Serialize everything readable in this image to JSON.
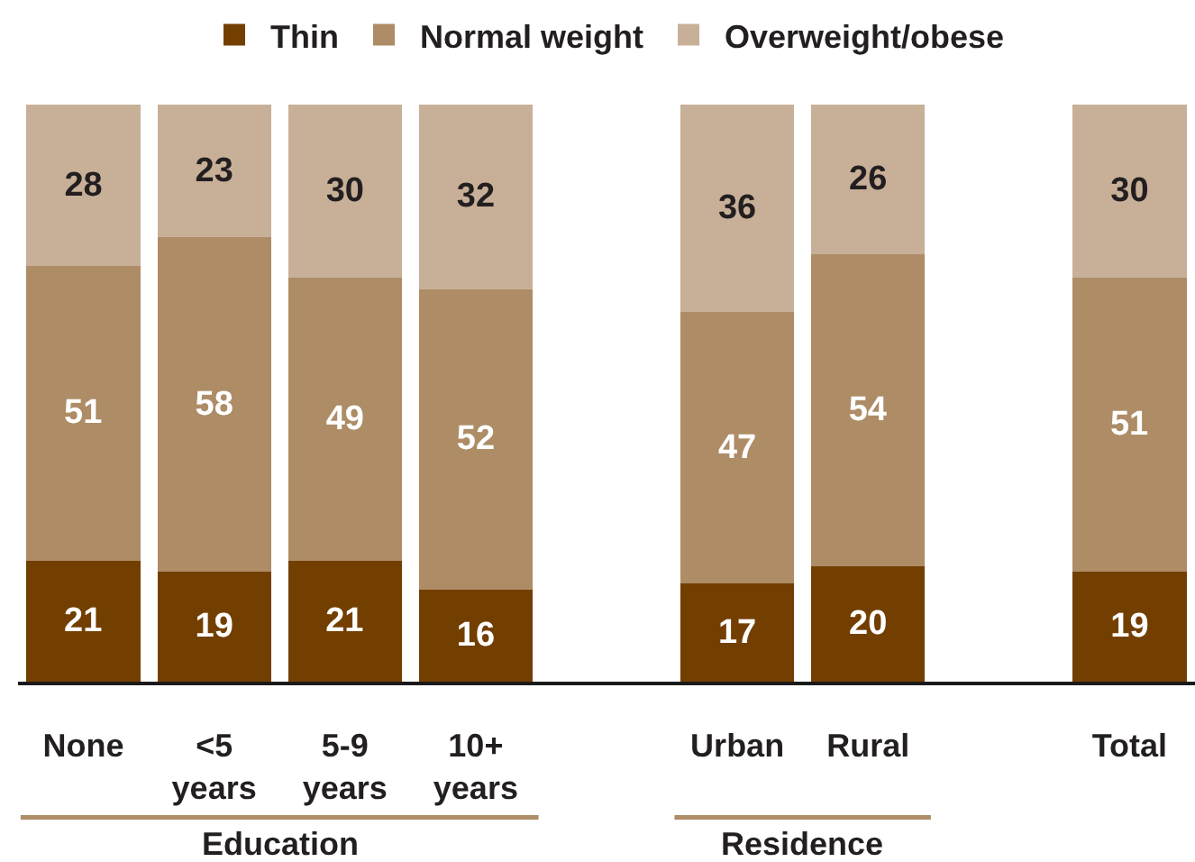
{
  "chart_data": {
    "type": "bar",
    "stacked": true,
    "categories": [
      "None",
      "<5 years",
      "5-9 years",
      "10+ years",
      null,
      "Urban",
      "Rural",
      null,
      "Total"
    ],
    "series": [
      {
        "name": "Thin",
        "color": "#733f00",
        "values": [
          21,
          19,
          21,
          16,
          null,
          17,
          20,
          null,
          19
        ]
      },
      {
        "name": "Normal weight",
        "color": "#ad8c66",
        "values": [
          51,
          58,
          49,
          52,
          null,
          47,
          54,
          null,
          51
        ]
      },
      {
        "name": "Overweight/obese",
        "color": "#c8b098",
        "values": [
          28,
          23,
          30,
          32,
          null,
          36,
          26,
          null,
          30
        ]
      }
    ],
    "ylim": [
      0,
      100
    ],
    "data_labels": true,
    "tick_labels": "x",
    "grid": false,
    "legend": "top",
    "annotations": [
      "Education",
      "Residence"
    ]
  }
}
